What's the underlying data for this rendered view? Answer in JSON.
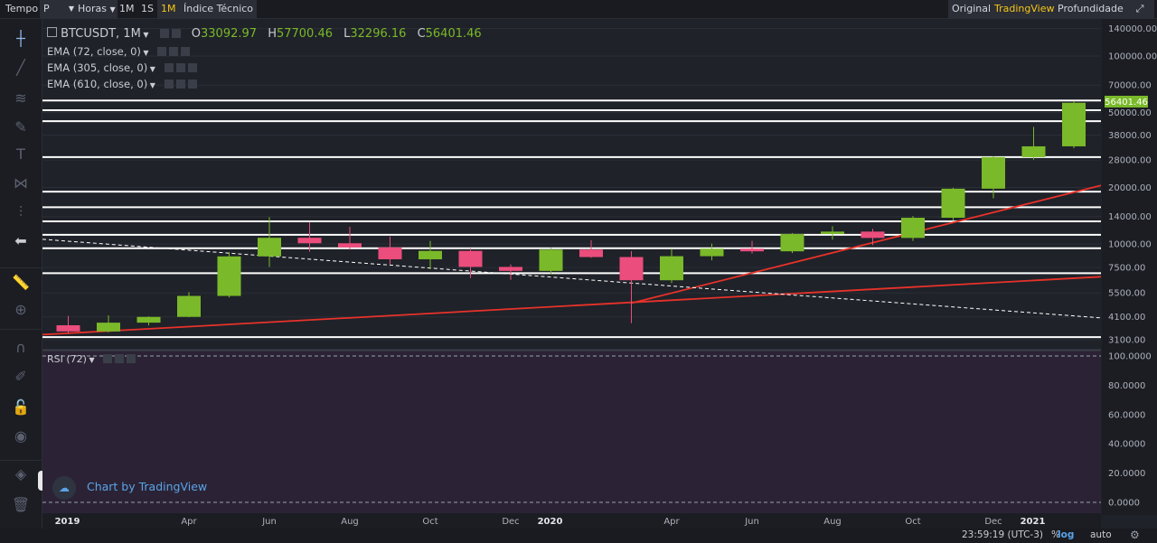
{
  "toolbar": {
    "items": [
      "Tempo",
      "P",
      "Horas",
      "1M",
      "1S",
      "1M",
      "Índice Técnico"
    ],
    "active_interval": "1M",
    "views": [
      "Original",
      "TradingView",
      "Profundidade"
    ],
    "active_view": "TradingView"
  },
  "header": {
    "symbol": "BTCUSDT, 1M",
    "o_label": "O",
    "o_value": "33092.97",
    "h_label": "H",
    "h_value": "57700.46",
    "l_label": "L",
    "l_value": "32296.16",
    "c_label": "C",
    "c_value": "56401.46",
    "ema_labels": [
      "EMA (72, close, 0)",
      "EMA (305, close, 0)",
      "EMA (610, close, 0)"
    ]
  },
  "rsi": {
    "label": "RSI (72)"
  },
  "watermark": "Chart by TradingView",
  "footer": {
    "time": "23:59:19 (UTC-3)",
    "percent": "%",
    "log": "log",
    "auto": "auto"
  },
  "colors": {
    "up": "#7ab929",
    "down": "#eb4d7c",
    "hline": "#ffffff",
    "trend": "#e8322a",
    "accent": "#f5c518",
    "rsi_bg": "#2b2335"
  },
  "chart_data": [
    {
      "type": "candlestick",
      "scale": "log",
      "x": [
        "2019-01",
        "2019-02",
        "2019-03",
        "2019-04",
        "2019-05",
        "2019-06",
        "2019-07",
        "2019-08",
        "2019-09",
        "2019-10",
        "2019-11",
        "2019-12",
        "2020-01",
        "2020-02",
        "2020-03",
        "2020-04",
        "2020-05",
        "2020-06",
        "2020-07",
        "2020-08",
        "2020-09",
        "2020-10",
        "2020-11",
        "2020-12",
        "2021-01",
        "2021-02"
      ],
      "open": [
        3700,
        3430,
        3820,
        4100,
        5300,
        8600,
        10800,
        10100,
        9600,
        8300,
        9200,
        7560,
        7200,
        9350,
        8530,
        6420,
        8620,
        9450,
        9150,
        11320,
        11650,
        10780,
        13800,
        19700,
        29000,
        33092.97
      ],
      "high": [
        4150,
        4180,
        4120,
        5550,
        9050,
        13900,
        13050,
        12350,
        10950,
        10400,
        9500,
        7800,
        9550,
        10500,
        9170,
        9450,
        10050,
        10400,
        11450,
        12450,
        12050,
        14100,
        19900,
        29300,
        41950,
        57700.46
      ],
      "low": [
        3350,
        3390,
        3690,
        4080,
        5200,
        7550,
        9100,
        9350,
        7800,
        7350,
        6600,
        6450,
        6900,
        8450,
        3800,
        6200,
        8200,
        8900,
        8950,
        10550,
        9880,
        10400,
        13300,
        17500,
        28100,
        32296.16
      ],
      "close": [
        3430,
        3820,
        4100,
        5300,
        8600,
        10800,
        10100,
        9600,
        8300,
        9200,
        7560,
        7200,
        9350,
        8530,
        6420,
        8620,
        9450,
        9150,
        11320,
        11650,
        10780,
        13800,
        19700,
        29000,
        33092.97,
        56401.46
      ],
      "last_price": "56401.46",
      "horizontal_levels": [
        3200,
        7000,
        9500,
        11200,
        13200,
        15700,
        19000,
        29000,
        45000,
        51500,
        58000
      ],
      "trendlines": [
        {
          "style": "solid",
          "color": "#e8322a",
          "from": {
            "x": "2018-12",
            "y": 3300
          },
          "to": {
            "x": "2021-04",
            "y": 6700
          }
        },
        {
          "style": "solid",
          "color": "#e8322a",
          "from": {
            "x": "2020-03",
            "y": 4850
          },
          "to": {
            "x": "2021-04",
            "y": 20500
          }
        },
        {
          "style": "dashed",
          "color": "#ffffff",
          "from": {
            "x": "2018-12",
            "y": 10600
          },
          "to": {
            "x": "2021-04",
            "y": 4050
          }
        }
      ],
      "y_ticks": [
        "140000.00",
        "100000.00",
        "70000.00",
        "50000.00",
        "38000.00",
        "28000.00",
        "20000.00",
        "14000.00",
        "10000.00",
        "7500.00",
        "5500.00",
        "4100.00",
        "3100.00"
      ],
      "x_ticks": [
        "2019",
        "Apr",
        "Jun",
        "Aug",
        "Oct",
        "Dec",
        "2020",
        "Apr",
        "Jun",
        "Aug",
        "Oct",
        "Dec",
        "2021"
      ]
    },
    {
      "type": "line",
      "title": "RSI (72)",
      "ylim": [
        0,
        100
      ],
      "y_ticks": [
        "100.0000",
        "80.0000",
        "60.0000",
        "40.0000",
        "20.0000",
        "0.0000"
      ],
      "levels": [
        100,
        0
      ]
    }
  ]
}
